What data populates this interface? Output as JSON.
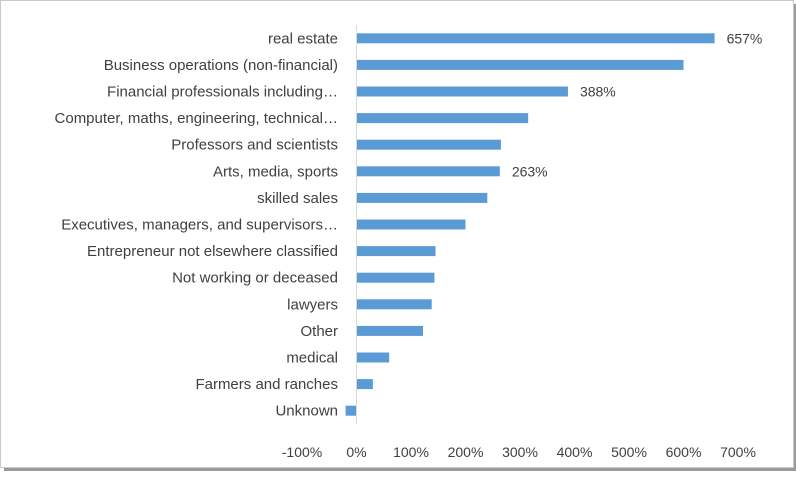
{
  "chart_data": {
    "type": "bar",
    "orientation": "horizontal",
    "categories": [
      "real estate",
      "Business operations (non-financial)",
      "Financial professionals including…",
      "Computer, maths, engineering, technical…",
      "Professors and scientists",
      "Arts, media, sports",
      "skilled sales",
      "Executives, managers, and supervisors…",
      "Entrepreneur not elsewhere classified",
      "Not working or deceased",
      "lawyers",
      "Other",
      "medical",
      "Farmers and ranches",
      "Unknown"
    ],
    "values": [
      657,
      600,
      388,
      315,
      265,
      263,
      240,
      200,
      145,
      143,
      138,
      122,
      60,
      30,
      -20
    ],
    "data_labels": [
      {
        "index": 0,
        "text": "657%"
      },
      {
        "index": 2,
        "text": "388%"
      },
      {
        "index": 5,
        "text": "263%"
      }
    ],
    "xlim": [
      -100,
      700
    ],
    "xticks": [
      -100,
      0,
      100,
      200,
      300,
      400,
      500,
      600,
      700
    ],
    "xtick_labels": [
      "-100%",
      "0%",
      "100%",
      "200%",
      "300%",
      "400%",
      "500%",
      "600%",
      "700%"
    ],
    "value_unit": "%",
    "grid": false,
    "legend": "none",
    "title": "",
    "xlabel": "",
    "ylabel": "",
    "colors": {
      "bar": "#5b9bd5",
      "text": "#404040",
      "axis": "#d9d9d9"
    }
  }
}
